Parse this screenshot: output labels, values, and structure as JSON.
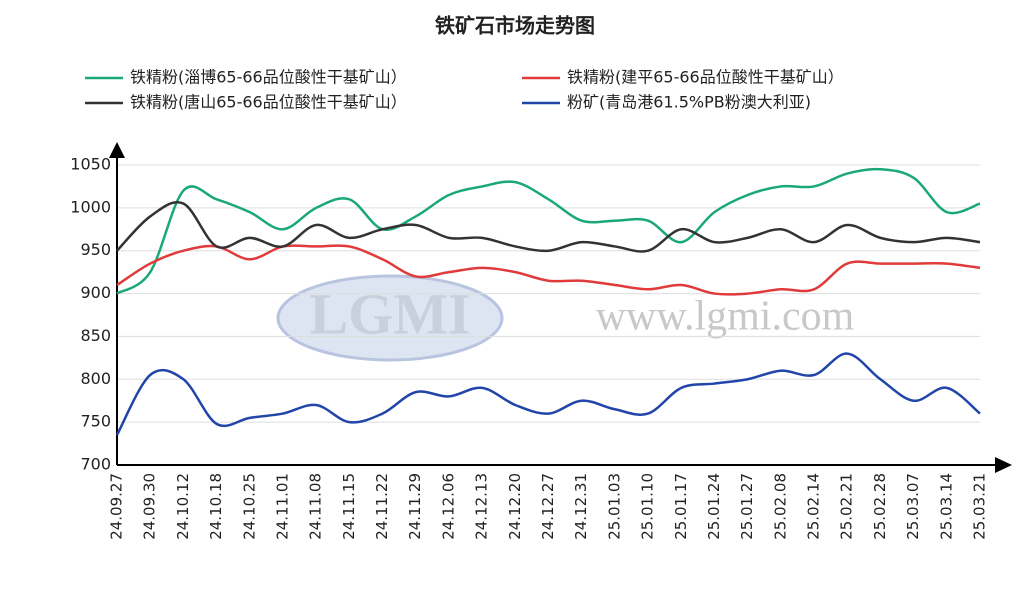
{
  "chart_data": {
    "type": "line",
    "title": "铁矿石市场走势图",
    "watermark_logo": "LGMI",
    "watermark_url": "www.lgmi.com",
    "categories": [
      "24.09.27",
      "24.09.30",
      "24.10.12",
      "24.10.18",
      "24.10.25",
      "24.11.01",
      "24.11.08",
      "24.11.15",
      "24.11.22",
      "24.11.29",
      "24.12.06",
      "24.12.13",
      "24.12.20",
      "24.12.27",
      "24.12.31",
      "25.01.03",
      "25.01.10",
      "25.01.17",
      "25.01.24",
      "25.01.27",
      "25.02.08",
      "25.02.14",
      "25.02.21",
      "25.02.28",
      "25.03.07",
      "25.03.14",
      "25.03.21"
    ],
    "series": [
      {
        "name": "铁精粉(淄博65-66品位酸性干基矿山）",
        "color": "#1aa974",
        "values": [
          900,
          925,
          1020,
          1010,
          995,
          975,
          1000,
          1010,
          975,
          990,
          1015,
          1025,
          1030,
          1010,
          985,
          985,
          985,
          960,
          995,
          1015,
          1025,
          1025,
          1040,
          1045,
          1035,
          995,
          1005
        ]
      },
      {
        "name": "铁精粉(建平65-66品位酸性干基矿山）",
        "color": "#e03a3a",
        "values": [
          910,
          935,
          950,
          955,
          940,
          955,
          955,
          955,
          940,
          920,
          925,
          930,
          925,
          915,
          915,
          910,
          905,
          910,
          900,
          900,
          905,
          905,
          935,
          935,
          935,
          935,
          930
        ]
      },
      {
        "name": "铁精粉(唐山65-66品位酸性干基矿山）",
        "color": "#333333",
        "values": [
          950,
          990,
          1005,
          955,
          965,
          955,
          980,
          965,
          975,
          980,
          965,
          965,
          955,
          950,
          960,
          955,
          950,
          975,
          960,
          965,
          975,
          960,
          980,
          965,
          960,
          965,
          960
        ]
      },
      {
        "name": "粉矿(青岛港61.5%PB粉澳大利亚)",
        "color": "#2145a8",
        "values": [
          735,
          805,
          800,
          748,
          755,
          760,
          770,
          750,
          760,
          785,
          780,
          790,
          770,
          760,
          775,
          765,
          760,
          790,
          795,
          800,
          810,
          805,
          830,
          800,
          775,
          790,
          760
        ]
      }
    ],
    "ylim": [
      700,
      1050
    ],
    "yticks": [
      700,
      750,
      800,
      850,
      900,
      950,
      1000,
      1050
    ],
    "grid": true
  }
}
